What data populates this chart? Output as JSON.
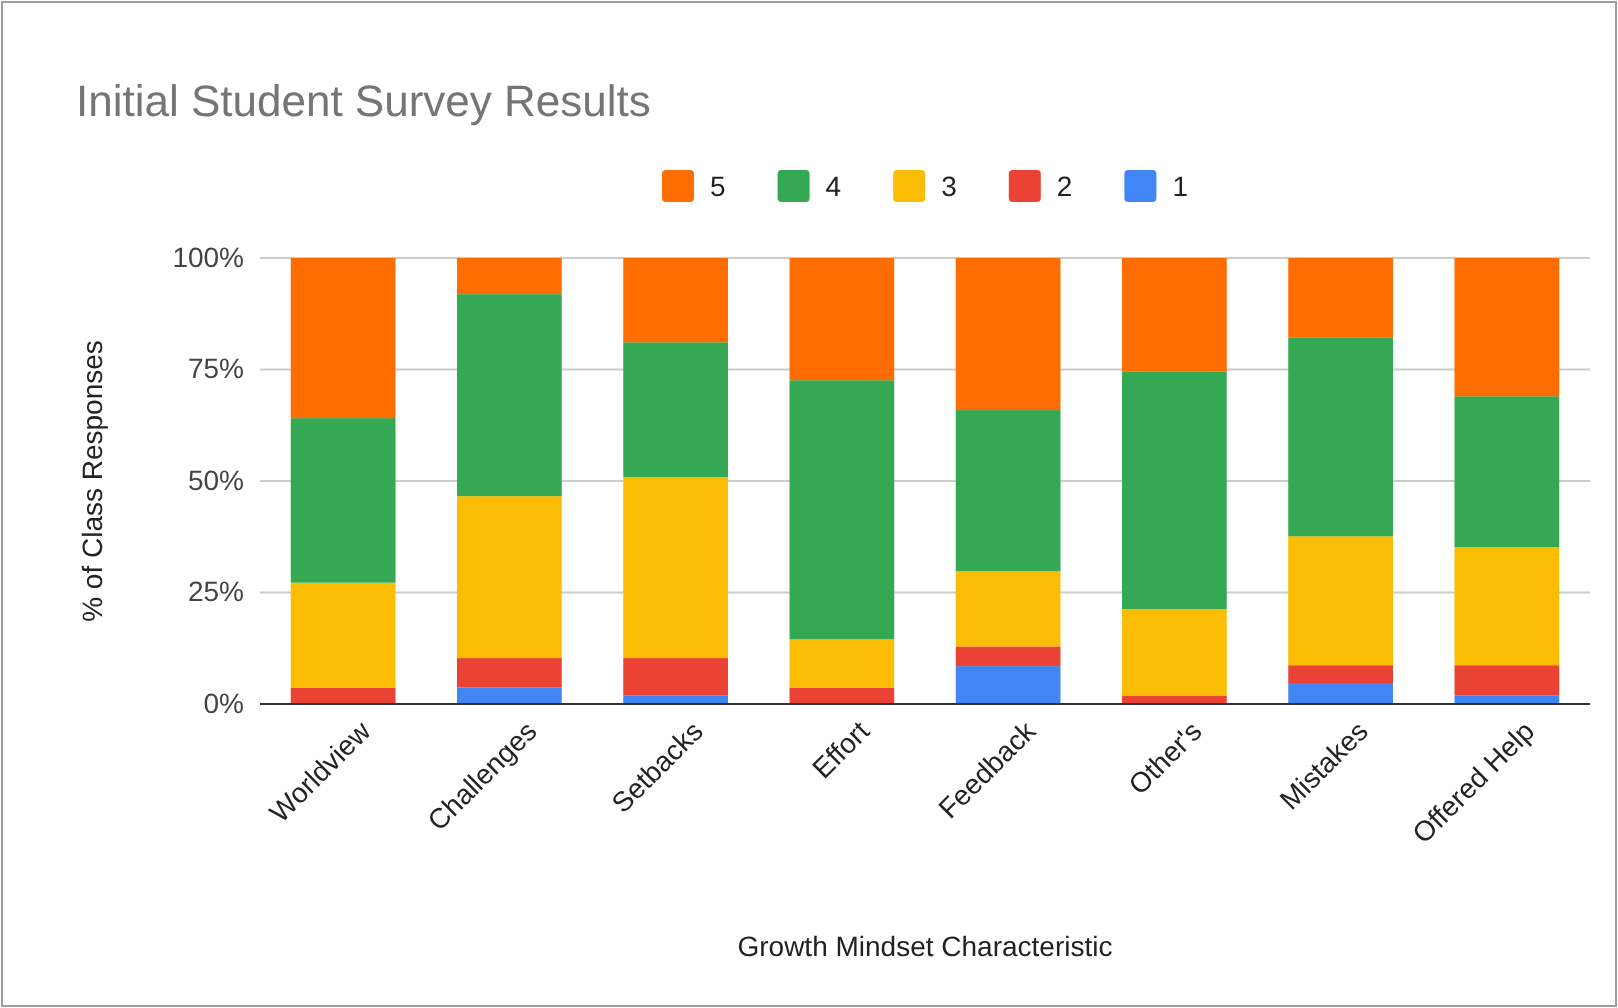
{
  "chart_data": {
    "type": "bar",
    "stacked": true,
    "title": "Initial Student Survey Results",
    "xlabel": "Growth Mindset Characteristic",
    "ylabel": "% of Class Responses",
    "categories": [
      "Worldview",
      "Challenges",
      "Setbacks",
      "Effort",
      "Feedback",
      "Other's",
      "Mistakes",
      "Offered Help"
    ],
    "series": [
      {
        "name": "1",
        "color": "#4285f4",
        "values": [
          0,
          3.7,
          1.9,
          0,
          8.5,
          0,
          4.5,
          1.9
        ]
      },
      {
        "name": "2",
        "color": "#ea4335",
        "values": [
          3.7,
          6.6,
          8.4,
          3.7,
          4.4,
          1.9,
          4.2,
          6.8
        ]
      },
      {
        "name": "3",
        "color": "#fbbc04",
        "values": [
          23.5,
          36.3,
          40.6,
          10.8,
          16.9,
          19.4,
          28.9,
          26.5
        ]
      },
      {
        "name": "4",
        "color": "#34a853",
        "values": [
          36.9,
          45.3,
          30.2,
          58.1,
          36.1,
          53.3,
          44.6,
          33.8
        ]
      },
      {
        "name": "5",
        "color": "#ff6d01",
        "values": [
          35.9,
          8.1,
          18.9,
          27.4,
          34.1,
          25.4,
          17.8,
          31.0
        ]
      }
    ],
    "ylim": [
      0,
      100
    ],
    "yticks": [
      {
        "value": 0,
        "label": "0%"
      },
      {
        "value": 25,
        "label": "25%"
      },
      {
        "value": 50,
        "label": "50%"
      },
      {
        "value": 75,
        "label": "75%"
      },
      {
        "value": 100,
        "label": "100%"
      }
    ],
    "grid": "y",
    "legend": "top"
  }
}
